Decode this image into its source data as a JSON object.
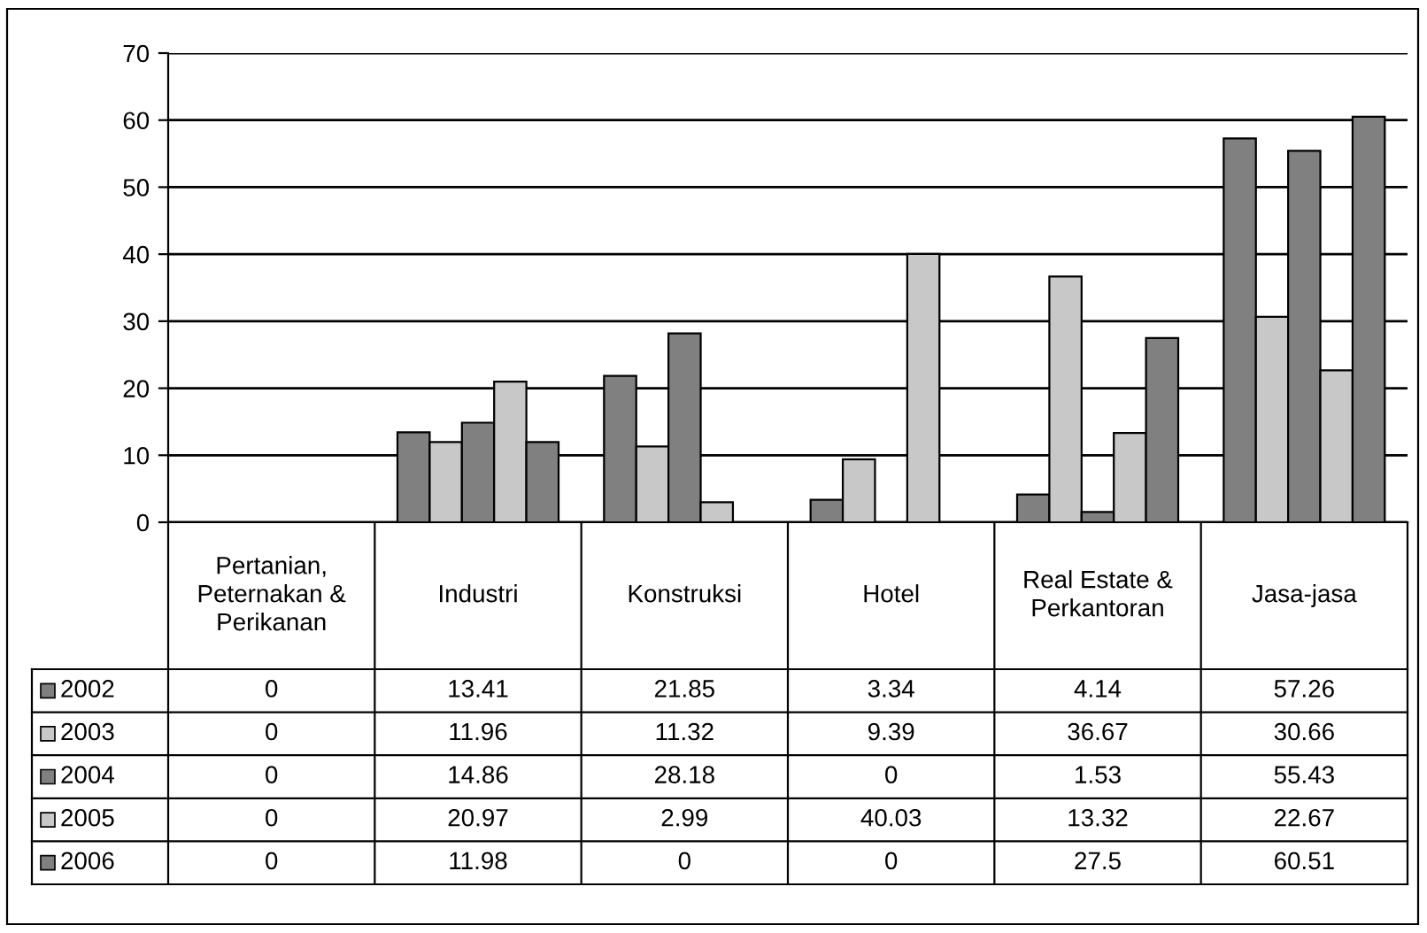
{
  "chart_data": {
    "type": "bar",
    "categories": [
      "Pertanian,\nPeternakan &\nPerikanan",
      "Industri",
      "Konstruksi",
      "Hotel",
      "Real Estate &\nPerkantoran",
      "Jasa-jasa"
    ],
    "series": [
      {
        "name": "2002",
        "color": "#808080",
        "values": [
          0,
          13.41,
          21.85,
          3.34,
          4.14,
          57.26
        ]
      },
      {
        "name": "2003",
        "color": "#c8c8c8",
        "values": [
          0,
          11.96,
          11.32,
          9.39,
          36.67,
          30.66
        ]
      },
      {
        "name": "2004",
        "color": "#808080",
        "values": [
          0,
          14.86,
          28.18,
          0,
          1.53,
          55.43
        ]
      },
      {
        "name": "2005",
        "color": "#c8c8c8",
        "values": [
          0,
          20.97,
          2.99,
          40.03,
          13.32,
          22.67
        ]
      },
      {
        "name": "2006",
        "color": "#808080",
        "values": [
          0,
          11.98,
          0,
          0,
          27.5,
          60.51
        ]
      }
    ],
    "ylim": [
      0,
      70
    ],
    "yticks": [
      0,
      10,
      20,
      30,
      40,
      50,
      60,
      70
    ],
    "grid": "y",
    "data_labels": true,
    "legend": "bottom left"
  }
}
